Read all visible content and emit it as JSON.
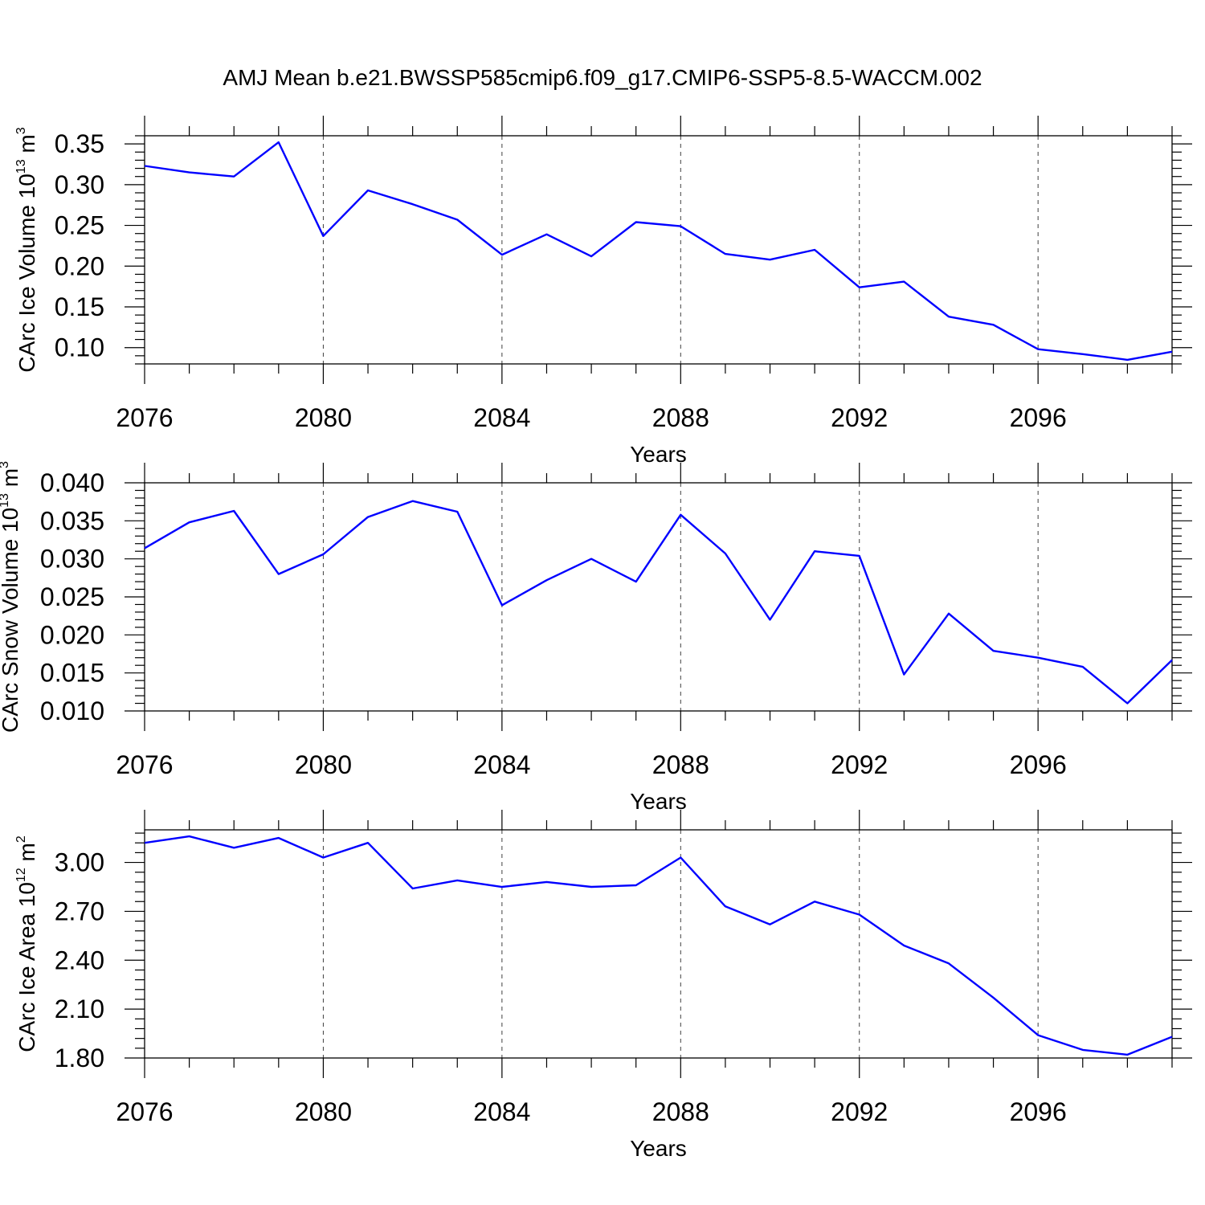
{
  "figure": {
    "title": "AMJ Mean b.e21.BWSSP585cmip6.f09_g17.CMIP6-SSP5-8.5-WACCM.002"
  },
  "chart_data": [
    {
      "type": "line",
      "title": "",
      "xlabel": "Years",
      "ylabel": {
        "text": "CArc Ice Volume 10",
        "exp1": "13",
        "mid": " m",
        "exp2": "3"
      },
      "xlim": [
        2076,
        2099
      ],
      "ylim": [
        0.08,
        0.36
      ],
      "xticks": [
        "2076",
        "2080",
        "2084",
        "2088",
        "2092",
        "2096"
      ],
      "yticks": [
        0.1,
        0.15,
        0.2,
        0.25,
        0.3,
        0.35
      ],
      "ytick_labels": [
        "0.10",
        "0.15",
        "0.20",
        "0.25",
        "0.30",
        "0.35"
      ],
      "grid": "vertical dashed at major x ticks",
      "series": [
        {
          "color": "#0000ff",
          "x": [
            2076,
            2077,
            2078,
            2079,
            2080,
            2081,
            2082,
            2083,
            2084,
            2085,
            2086,
            2087,
            2088,
            2089,
            2090,
            2091,
            2092,
            2093,
            2094,
            2095,
            2096,
            2097,
            2098,
            2099
          ],
          "values": [
            0.323,
            0.315,
            0.31,
            0.352,
            0.237,
            0.293,
            0.276,
            0.257,
            0.214,
            0.239,
            0.212,
            0.254,
            0.249,
            0.215,
            0.208,
            0.22,
            0.174,
            0.181,
            0.138,
            0.128,
            0.098,
            0.092,
            0.085,
            0.095
          ]
        }
      ]
    },
    {
      "type": "line",
      "title": "",
      "xlabel": "Years",
      "ylabel": {
        "text": "CArc Snow Volume 10",
        "exp1": "13",
        "mid": " m",
        "exp2": "3"
      },
      "xlim": [
        2076,
        2099
      ],
      "ylim": [
        0.01,
        0.04
      ],
      "xticks": [
        "2076",
        "2080",
        "2084",
        "2088",
        "2092",
        "2096"
      ],
      "yticks": [
        0.01,
        0.015,
        0.02,
        0.025,
        0.03,
        0.035,
        0.04
      ],
      "ytick_labels": [
        "0.010",
        "0.015",
        "0.020",
        "0.025",
        "0.030",
        "0.035",
        "0.040"
      ],
      "grid": "vertical dashed at major x ticks",
      "series": [
        {
          "color": "#0000ff",
          "x": [
            2076,
            2077,
            2078,
            2079,
            2080,
            2081,
            2082,
            2083,
            2084,
            2085,
            2086,
            2087,
            2088,
            2089,
            2090,
            2091,
            2092,
            2093,
            2094,
            2095,
            2096,
            2097,
            2098,
            2099
          ],
          "values": [
            0.0314,
            0.0348,
            0.0363,
            0.028,
            0.0306,
            0.0355,
            0.0376,
            0.0362,
            0.0239,
            0.0272,
            0.03,
            0.027,
            0.0358,
            0.0307,
            0.022,
            0.031,
            0.0304,
            0.0148,
            0.0228,
            0.0179,
            0.017,
            0.0158,
            0.011,
            0.0167
          ]
        }
      ]
    },
    {
      "type": "line",
      "title": "",
      "xlabel": "Years",
      "ylabel": {
        "text": "CArc Ice Area 10",
        "exp1": "12",
        "mid": " m",
        "exp2": "2"
      },
      "xlim": [
        2076,
        2099
      ],
      "ylim": [
        1.8,
        3.2
      ],
      "xticks": [
        "2076",
        "2080",
        "2084",
        "2088",
        "2092",
        "2096"
      ],
      "yticks": [
        1.8,
        2.1,
        2.4,
        2.7,
        3.0
      ],
      "ytick_labels": [
        "1.80",
        "2.10",
        "2.40",
        "2.70",
        "3.00"
      ],
      "grid": "vertical dashed at major x ticks",
      "series": [
        {
          "color": "#0000ff",
          "x": [
            2076,
            2077,
            2078,
            2079,
            2080,
            2081,
            2082,
            2083,
            2084,
            2085,
            2086,
            2087,
            2088,
            2089,
            2090,
            2091,
            2092,
            2093,
            2094,
            2095,
            2096,
            2097,
            2098,
            2099
          ],
          "values": [
            3.12,
            3.16,
            3.09,
            3.15,
            3.03,
            3.12,
            2.84,
            2.89,
            2.85,
            2.88,
            2.85,
            2.86,
            3.03,
            2.73,
            2.62,
            2.76,
            2.68,
            2.49,
            2.38,
            2.17,
            1.94,
            1.85,
            1.82,
            1.93
          ]
        }
      ]
    }
  ]
}
